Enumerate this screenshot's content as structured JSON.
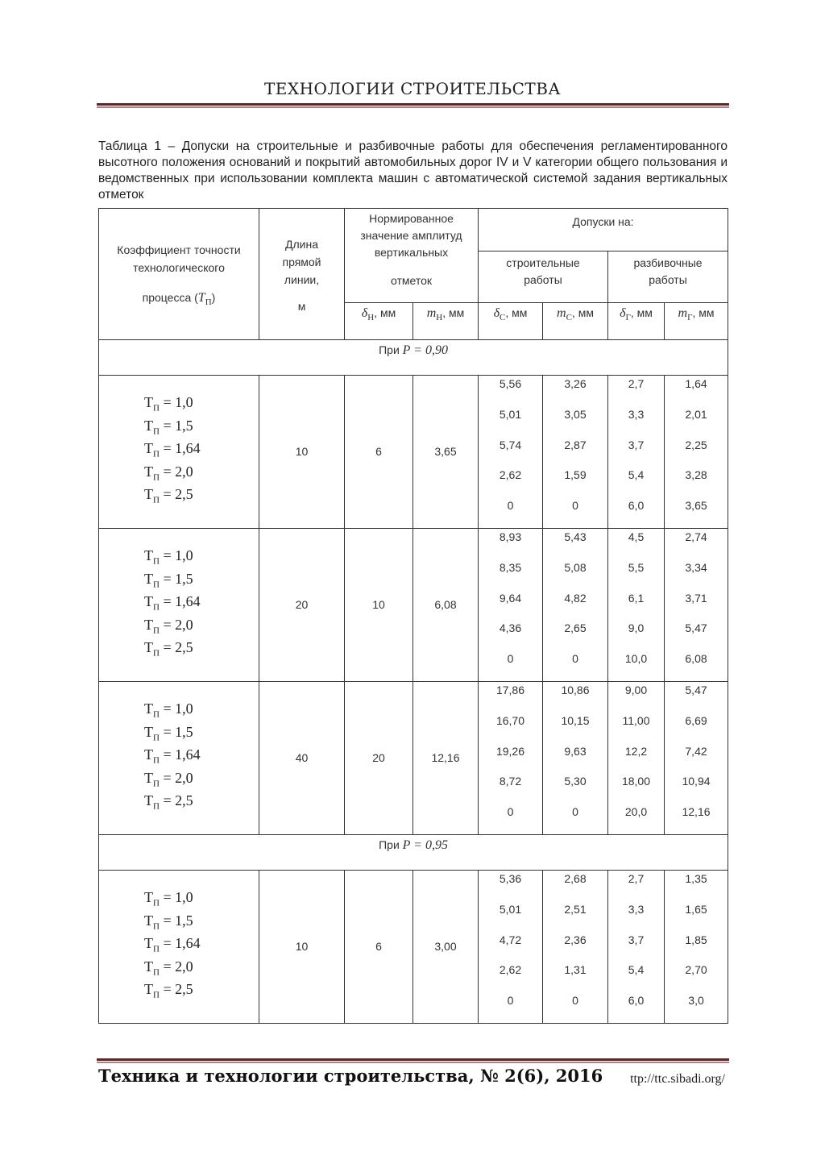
{
  "header": {
    "running_title": "ТЕХНОЛОГИИ СТРОИТЕЛЬСТВА"
  },
  "caption": "Таблица 1 – Допуски на строительные и разбивочные работы для обеспечения регламентированного высотного положения оснований и покрытий автомобильных дорог IV и V категории общего пользования и ведомственных при использовании комплекта машин с автоматической системой задания вертикальных отметок",
  "table": {
    "h_coef": "Коэффициент точности технологического",
    "h_coef2": "процесса (",
    "h_coef_sym": "T",
    "h_coef_sub": "П",
    "h_len": "Длина прямой линии,",
    "h_len_unit": "м",
    "h_norm": "Нормированное значение амплитуд вертикальных",
    "h_norm2": "отметок",
    "h_tol": "Допуски на:",
    "h_build": "строительные работы",
    "h_mark": "разбивочные работы",
    "sub": [
      {
        "sym": "δ",
        "sub": "Н",
        "unit": ", мм"
      },
      {
        "sym": "m",
        "sub": "Н",
        "unit": ", мм"
      },
      {
        "sym": "δ",
        "sub": "С",
        "unit": ", мм"
      },
      {
        "sym": "m",
        "sub": "С",
        "unit": ", мм"
      },
      {
        "sym": "δ",
        "sub": "Г",
        "unit": ", мм"
      },
      {
        "sym": "m",
        "sub": "Г",
        "unit": ", мм"
      }
    ],
    "tp_label": "Т",
    "tp_sub": "П",
    "tp_values": [
      "= 1,0",
      "= 1,5",
      "= 1,64",
      "= 2,0",
      "= 2,5"
    ],
    "sections": [
      {
        "label": "При",
        "p": "P = 0,90",
        "groups": [
          {
            "length": "10",
            "dH": "6",
            "mH": "3,65",
            "dC": [
              "5,56",
              "5,01",
              "5,74",
              "2,62",
              "0"
            ],
            "mC": [
              "3,26",
              "3,05",
              "2,87",
              "1,59",
              "0"
            ],
            "dG": [
              "2,7",
              "3,3",
              "3,7",
              "5,4",
              "6,0"
            ],
            "mG": [
              "1,64",
              "2,01",
              "2,25",
              "3,28",
              "3,65"
            ]
          },
          {
            "length": "20",
            "dH": "10",
            "mH": "6,08",
            "dC": [
              "8,93",
              "8,35",
              "9,64",
              "4,36",
              "0"
            ],
            "mC": [
              "5,43",
              "5,08",
              "4,82",
              "2,65",
              "0"
            ],
            "dG": [
              "4,5",
              "5,5",
              "6,1",
              "9,0",
              "10,0"
            ],
            "mG": [
              "2,74",
              "3,34",
              "3,71",
              "5,47",
              "6,08"
            ]
          },
          {
            "length": "40",
            "dH": "20",
            "mH": "12,16",
            "dC": [
              "17,86",
              "16,70",
              "19,26",
              "8,72",
              "0"
            ],
            "mC": [
              "10,86",
              "10,15",
              "9,63",
              "5,30",
              "0"
            ],
            "dG": [
              "9,00",
              "11,00",
              "12,2",
              "18,00",
              "20,0"
            ],
            "mG": [
              "5,47",
              "6,69",
              "7,42",
              "10,94",
              "12,16"
            ]
          }
        ]
      },
      {
        "label": "При",
        "p": "P = 0,95",
        "groups": [
          {
            "length": "10",
            "dH": "6",
            "mH": "3,00",
            "dC": [
              "5,36",
              "5,01",
              "4,72",
              "2,62",
              "0"
            ],
            "mC": [
              "2,68",
              "2,51",
              "2,36",
              "1,31",
              "0"
            ],
            "dG": [
              "2,7",
              "3,3",
              "3,7",
              "5,4",
              "6,0"
            ],
            "mG": [
              "1,35",
              "1,65",
              "1,85",
              "2,70",
              "3,0"
            ]
          }
        ]
      }
    ]
  },
  "footer": {
    "journal": "Техника и технологии строительства, № 2(6), 2016",
    "url": "ttp://ttc.sibadi.org/"
  },
  "colors": {
    "rule": "#5a2626"
  }
}
